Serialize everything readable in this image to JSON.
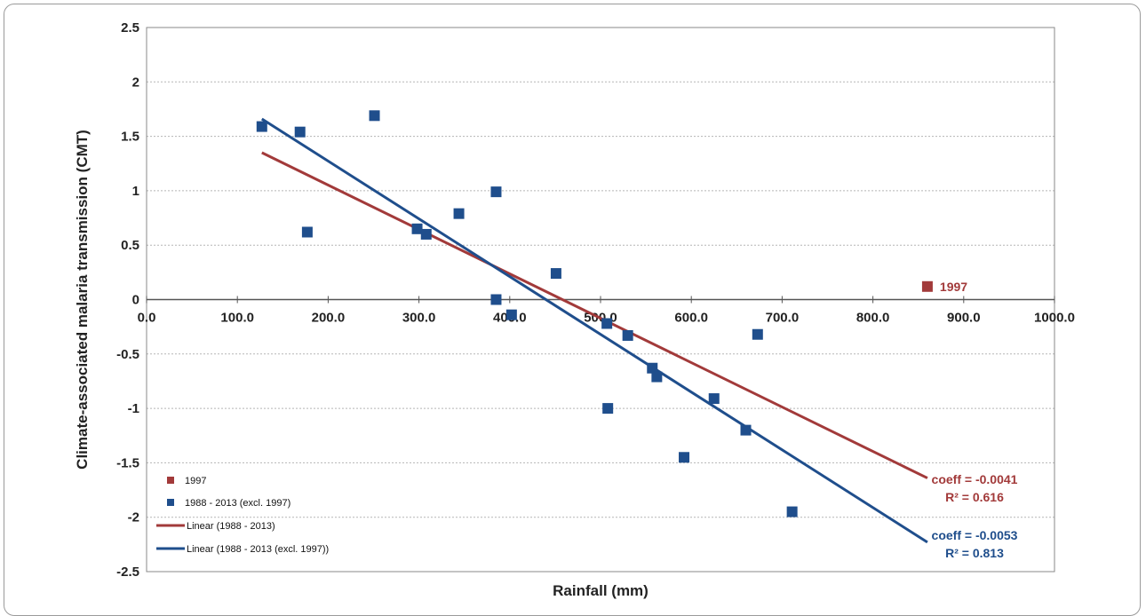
{
  "chart_data": {
    "type": "scatter",
    "xlabel": "Rainfall (mm)",
    "ylabel": "Climate-associated malaria transmission (CMT)",
    "xlim": [
      0,
      1000
    ],
    "ylim": [
      -2.5,
      2.5
    ],
    "x_ticks": [
      "0.0",
      "100.0",
      "200.0",
      "300.0",
      "400.0",
      "500.0",
      "600.0",
      "700.0",
      "800.0",
      "900.0",
      "1000.0"
    ],
    "y_ticks": [
      "2.5",
      "2",
      "1.5",
      "1",
      "0.5",
      "0",
      "-0.5",
      "-1",
      "-1.5",
      "-2",
      "-2.5"
    ],
    "grid": "horizontal dotted",
    "legend_position": "bottom-left",
    "series": [
      {
        "name": "1997",
        "kind": "scatter",
        "color": "#a23a3a",
        "points": [
          [
            860,
            0.12
          ]
        ],
        "point_label": "1997"
      },
      {
        "name": "1988 - 2013 (excl. 1997)",
        "kind": "scatter",
        "color": "#1f4e8c",
        "points": [
          [
            127,
            1.59
          ],
          [
            169,
            1.54
          ],
          [
            177,
            0.62
          ],
          [
            251,
            1.69
          ],
          [
            298,
            0.65
          ],
          [
            308,
            0.6
          ],
          [
            344,
            0.79
          ],
          [
            385,
            0.99
          ],
          [
            385,
            0.0
          ],
          [
            402,
            -0.14
          ],
          [
            451,
            0.24
          ],
          [
            507,
            -0.22
          ],
          [
            508,
            -1.0
          ],
          [
            530,
            -0.33
          ],
          [
            557,
            -0.63
          ],
          [
            562,
            -0.71
          ],
          [
            592,
            -1.45
          ],
          [
            625,
            -0.91
          ],
          [
            660,
            -1.2
          ],
          [
            673,
            -0.32
          ],
          [
            711,
            -1.95
          ]
        ]
      },
      {
        "name": "Linear (1988 - 2013)",
        "kind": "line",
        "color": "#a23a3a",
        "points": [
          [
            127,
            1.35
          ],
          [
            860,
            -1.64
          ]
        ]
      },
      {
        "name": "Linear (1988 - 2013 (excl. 1997))",
        "kind": "line",
        "color": "#1f4e8c",
        "points": [
          [
            127,
            1.66
          ],
          [
            860,
            -2.23
          ]
        ]
      }
    ],
    "annotations": [
      {
        "lines": [
          "coeff = -0.0041",
          "R² = 0.616"
        ],
        "color": "#a23a3a"
      },
      {
        "lines": [
          "coeff = -0.0053",
          "R² = 0.813"
        ],
        "color": "#1f4e8c"
      }
    ]
  }
}
